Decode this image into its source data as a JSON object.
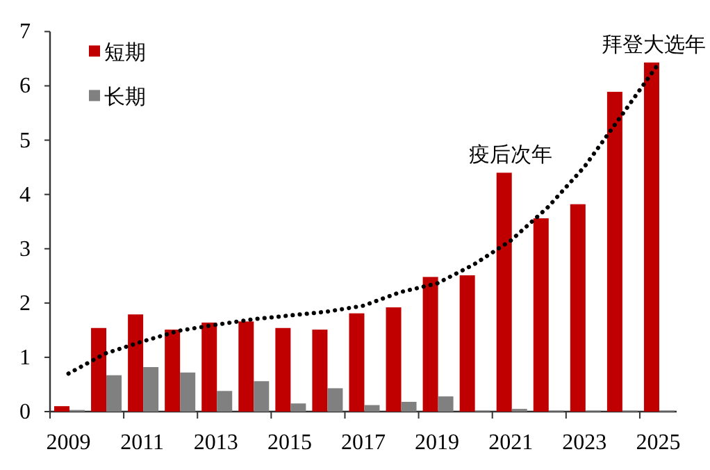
{
  "chart_data": {
    "type": "bar",
    "categories": [
      "2009",
      null,
      "2011",
      null,
      "2013",
      null,
      "2015",
      null,
      "2017",
      null,
      "2019",
      null,
      "2021",
      null,
      "2023",
      null,
      "2025"
    ],
    "series": [
      {
        "name": "短期",
        "color": "#c00000",
        "values": [
          0.1,
          1.54,
          1.79,
          1.51,
          1.64,
          1.66,
          1.54,
          1.51,
          1.81,
          1.92,
          2.48,
          2.51,
          4.4,
          3.56,
          3.82,
          5.89,
          6.43
        ]
      },
      {
        "name": "长期",
        "color": "#808080",
        "values": [
          0.03,
          0.67,
          0.82,
          0.72,
          0.38,
          0.56,
          0.15,
          0.43,
          0.12,
          0.18,
          0.28,
          0.02,
          0.05,
          0.02,
          0.02,
          0.02,
          0.02
        ]
      },
      {
        "type": "line",
        "color": "#000000",
        "line_style": "dotted",
        "marker": "none",
        "values": [
          0.7,
          1.07,
          1.29,
          1.49,
          1.6,
          1.7,
          1.77,
          1.84,
          1.95,
          2.2,
          2.36,
          2.71,
          3.15,
          3.76,
          4.51,
          5.45,
          6.4
        ]
      }
    ],
    "ylim": [
      0,
      7
    ],
    "yticks": [
      0,
      1,
      2,
      3,
      4,
      5,
      6,
      7
    ],
    "grid": false,
    "legend": "top left",
    "annotations": [
      {
        "text": "疫后次年",
        "x": "2021",
        "y": 4.4
      },
      {
        "text": "拜登大选年",
        "x": "2025",
        "y": 6.43
      }
    ]
  }
}
